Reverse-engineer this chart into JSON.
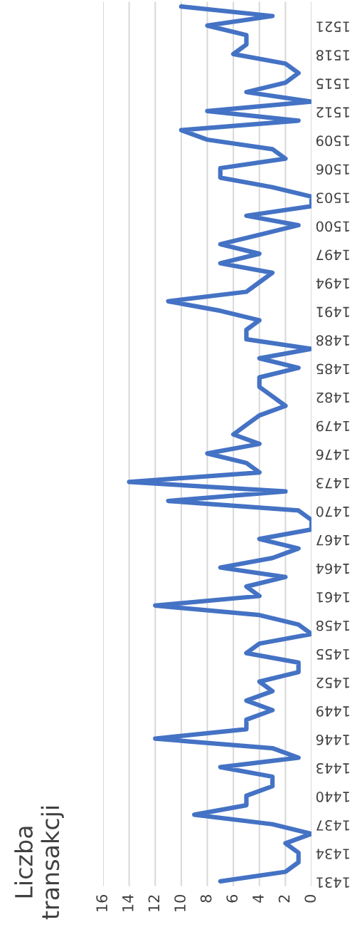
{
  "chart_data": {
    "type": "line",
    "orientation": "horizontal",
    "ylabel": "Liczba transakcji",
    "categories": [
      null,
      null,
      "1521",
      null,
      null,
      "1518",
      null,
      null,
      "1515",
      null,
      null,
      "1512",
      null,
      null,
      "1509",
      null,
      null,
      "1506",
      null,
      null,
      "1503",
      null,
      null,
      "1500",
      null,
      null,
      "1497",
      null,
      null,
      "1494",
      null,
      null,
      "1491",
      null,
      null,
      "1488",
      null,
      null,
      "1485",
      null,
      null,
      "1482",
      null,
      null,
      "1479",
      null,
      null,
      "1476",
      null,
      null,
      "1473",
      null,
      null,
      "1470",
      null,
      null,
      "1467",
      null,
      null,
      "1464",
      null,
      null,
      "1461",
      null,
      null,
      "1458",
      null,
      null,
      "1455",
      null,
      null,
      "1452",
      null,
      null,
      "1449",
      null,
      null,
      "1446",
      null,
      null,
      "1443",
      null,
      null,
      "1440",
      null,
      null,
      "1437",
      null,
      null,
      "1434",
      null,
      null,
      "1431"
    ],
    "series": [
      {
        "color": "#4472c4",
        "values": [
          10,
          3,
          8,
          5,
          5,
          6,
          2,
          1,
          2,
          5,
          0,
          8,
          1,
          10,
          8,
          3,
          2,
          7,
          7,
          3,
          0,
          0,
          5,
          1,
          4,
          7,
          4,
          7,
          3,
          4,
          5,
          11,
          7,
          4,
          5,
          5,
          0,
          4,
          1,
          4,
          4,
          3,
          2,
          4,
          5,
          6,
          4,
          8,
          5,
          4,
          14,
          2,
          11,
          1,
          0,
          0,
          4,
          1,
          3,
          7,
          2,
          5,
          4,
          12,
          4,
          1,
          0,
          4,
          5,
          1,
          1,
          4,
          3,
          5,
          3,
          5,
          5,
          12,
          3,
          1,
          7,
          3,
          3,
          5,
          5,
          9,
          3,
          0,
          2,
          1,
          1,
          2,
          7
        ]
      }
    ],
    "xlim": [
      16,
      0
    ],
    "xticks": [
      16,
      14,
      12,
      10,
      8,
      6,
      4,
      2,
      0
    ],
    "grid": true,
    "marker": "none",
    "line_style": "solid"
  }
}
